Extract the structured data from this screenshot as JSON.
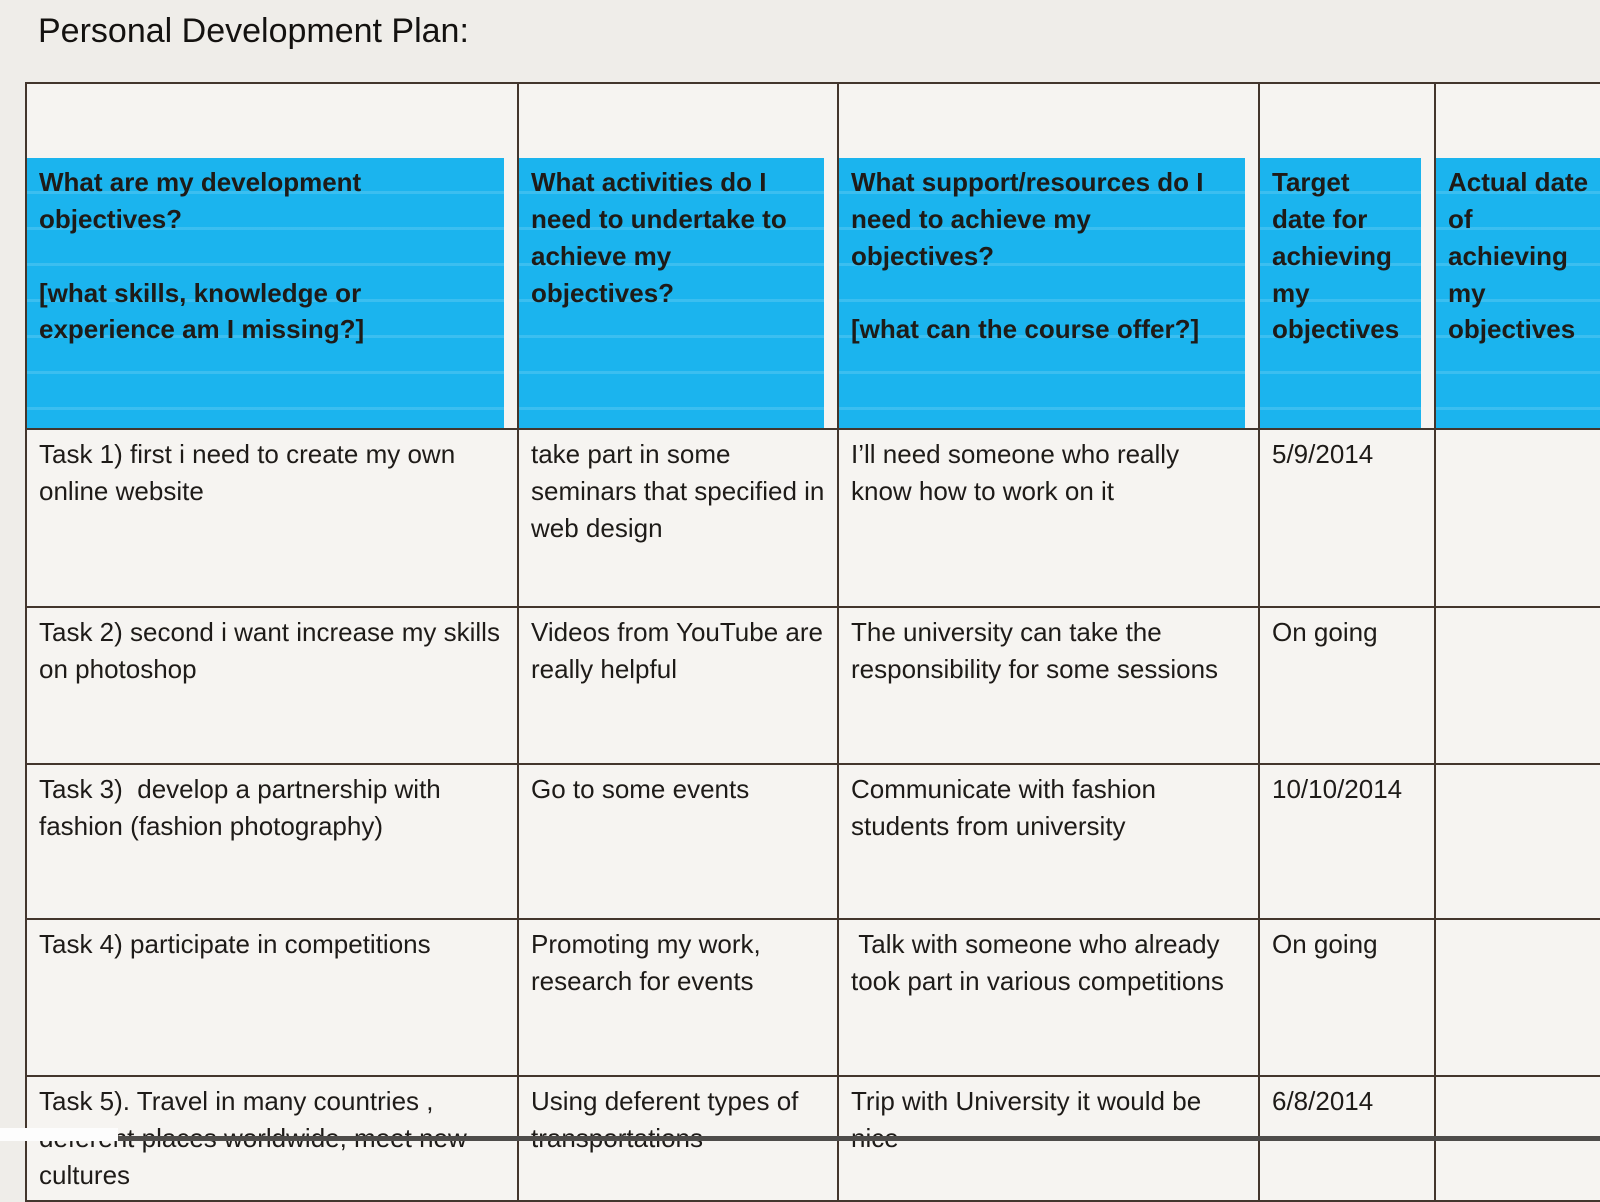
{
  "page": {
    "title": "Personal Development Plan:"
  },
  "colors": {
    "header_bg": "#1bb4ee",
    "cell_bg": "#f6f4f1",
    "border": "#43362d"
  },
  "table": {
    "columns": [
      {
        "id": "objectives",
        "label": "What are my development objectives?\n\n[what skills, knowledge or experience am I missing?]"
      },
      {
        "id": "activities",
        "label": "What activities do I need to undertake to achieve my objectives?"
      },
      {
        "id": "support",
        "label": "What support/resources do I need to achieve my objectives?\n\n[what can the course offer?]"
      },
      {
        "id": "target_date",
        "label": "Target date for achieving my objectives"
      },
      {
        "id": "actual_date",
        "label": "Actual date of achieving my objectives"
      }
    ],
    "rows": [
      {
        "objectives": "Task 1) first i need to create my own online website",
        "activities": "take part in some seminars that specified in web design",
        "support": "I’ll need someone who really know how to work on it",
        "target_date": "5/9/2014",
        "actual_date": ""
      },
      {
        "objectives": "Task 2) second i want increase my skills on photoshop",
        "activities": "Videos from YouTube are really helpful",
        "support": "The university can take the responsibility for some sessions",
        "target_date": "On going",
        "actual_date": ""
      },
      {
        "objectives": "Task 3)  develop a partnership with fashion (fashion photography)",
        "activities": "Go to some events",
        "support": "Communicate with fashion students from university",
        "target_date": "10/10/2014",
        "actual_date": ""
      },
      {
        "objectives": "Task 4) participate in competitions",
        "activities": "Promoting my work, research for events",
        "support": " Talk with someone who already took part in various competitions",
        "target_date": "On going",
        "actual_date": ""
      },
      {
        "objectives": "Task 5). Travel in many countries , deferent places worldwide, meet new cultures",
        "activities": "Using deferent types of transportations",
        "support": "Trip with University it would be nice",
        "target_date": "6/8/2014",
        "actual_date": ""
      }
    ]
  }
}
